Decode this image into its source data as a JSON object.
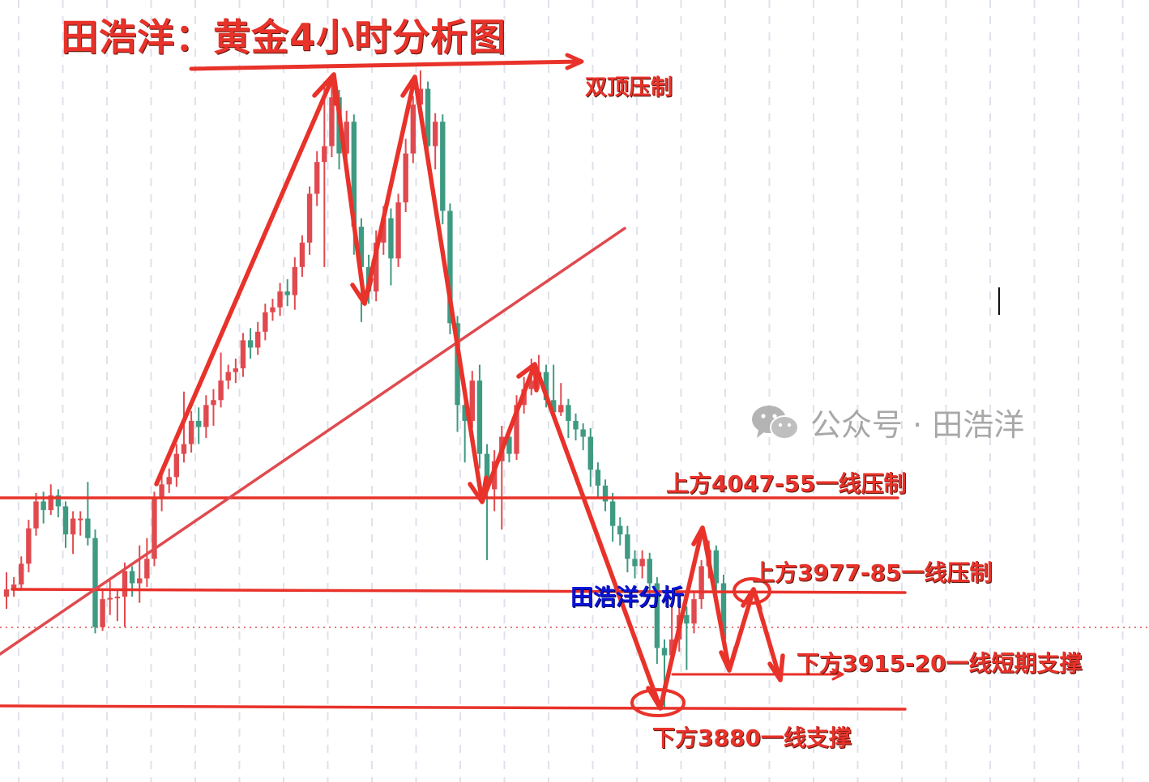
{
  "title": "田浩洋：黄金4小时分析图",
  "annotations": {
    "double_top": "双顶压制",
    "resistance_upper": "上方4047-55一线压制",
    "resistance_lower": "上方3977-85一线压制",
    "support_short": "下方3915-20一线短期支撑",
    "support_main": "下方3880一线支撑",
    "author_mark": "田浩洋分析"
  },
  "watermark": {
    "icon": "wechat-icon",
    "text": "公众号 · 田浩洋"
  },
  "colors": {
    "up": "#e04a4f",
    "down": "#3f9a82",
    "annotation": "#e8322a",
    "author": "#0a14d8",
    "grid": "#dfe2ea"
  },
  "chart_data": {
    "type": "candlestick",
    "timeframe": "4H",
    "levels": {
      "resistance_upper": [
        4047,
        4055
      ],
      "resistance_lower": [
        3977,
        3985
      ],
      "support_short": [
        3915,
        3920
      ],
      "support_main": 3880
    },
    "ohlc": [
      [
        3970,
        3990,
        3960,
        3976
      ],
      [
        3976,
        3986,
        3970,
        3980
      ],
      [
        3980,
        4003,
        3975,
        3997
      ],
      [
        3997,
        4033,
        3990,
        4026
      ],
      [
        4026,
        4055,
        4020,
        4048
      ],
      [
        4048,
        4056,
        4030,
        4041
      ],
      [
        4041,
        4062,
        4037,
        4053
      ],
      [
        4053,
        4058,
        4035,
        4044
      ],
      [
        4044,
        4048,
        4010,
        4021
      ],
      [
        4021,
        4040,
        4005,
        4034
      ],
      [
        4034,
        4040,
        4020,
        4034
      ],
      [
        4034,
        4064,
        4012,
        4018
      ],
      [
        4018,
        4025,
        3940,
        3945
      ],
      [
        3945,
        3975,
        3942,
        3968
      ],
      [
        3968,
        3983,
        3955,
        3969
      ],
      [
        3969,
        3975,
        3950,
        3970
      ],
      [
        3970,
        3998,
        3945,
        3991
      ],
      [
        3991,
        3995,
        3970,
        3981
      ],
      [
        3981,
        4012,
        3965,
        3985
      ],
      [
        3985,
        4018,
        3978,
        4001
      ],
      [
        4001,
        4056,
        3995,
        4051
      ],
      [
        4051,
        4070,
        4040,
        4062
      ],
      [
        4062,
        4075,
        4055,
        4068
      ],
      [
        4068,
        4095,
        4060,
        4087
      ],
      [
        4087,
        4138,
        4080,
        4095
      ],
      [
        4095,
        4122,
        4088,
        4114
      ],
      [
        4114,
        4125,
        4095,
        4109
      ],
      [
        4109,
        4135,
        4100,
        4127
      ],
      [
        4127,
        4140,
        4110,
        4131
      ],
      [
        4131,
        4170,
        4125,
        4147
      ],
      [
        4147,
        4160,
        4140,
        4154
      ],
      [
        4154,
        4165,
        4145,
        4157
      ],
      [
        4157,
        4186,
        4150,
        4180
      ],
      [
        4180,
        4190,
        4165,
        4174
      ],
      [
        4174,
        4195,
        4168,
        4187
      ],
      [
        4187,
        4210,
        4180,
        4203
      ],
      [
        4203,
        4214,
        4196,
        4207
      ],
      [
        4207,
        4227,
        4200,
        4220
      ],
      [
        4220,
        4230,
        4208,
        4217
      ],
      [
        4217,
        4248,
        4205,
        4240
      ],
      [
        4240,
        4266,
        4232,
        4260
      ],
      [
        4260,
        4306,
        4250,
        4300
      ],
      [
        4300,
        4335,
        4290,
        4326
      ],
      [
        4326,
        4392,
        4240,
        4339
      ],
      [
        4339,
        4398,
        4330,
        4379
      ],
      [
        4379,
        4385,
        4320,
        4333
      ],
      [
        4333,
        4368,
        4325,
        4359
      ],
      [
        4359,
        4365,
        4250,
        4273
      ],
      [
        4273,
        4280,
        4195,
        4240
      ],
      [
        4240,
        4250,
        4210,
        4220
      ],
      [
        4220,
        4270,
        4212,
        4260
      ],
      [
        4260,
        4290,
        4250,
        4280
      ],
      [
        4280,
        4288,
        4225,
        4247
      ],
      [
        4247,
        4300,
        4240,
        4293
      ],
      [
        4293,
        4345,
        4285,
        4333
      ],
      [
        4333,
        4380,
        4325,
        4373
      ],
      [
        4373,
        4401,
        4365,
        4386
      ],
      [
        4386,
        4392,
        4330,
        4339
      ],
      [
        4339,
        4366,
        4320,
        4359
      ],
      [
        4359,
        4365,
        4275,
        4286
      ],
      [
        4286,
        4292,
        4185,
        4194
      ],
      [
        4194,
        4200,
        4105,
        4127
      ],
      [
        4127,
        4135,
        4080,
        4114
      ],
      [
        4114,
        4155,
        4108,
        4147
      ],
      [
        4147,
        4160,
        4075,
        4087
      ],
      [
        4087,
        4095,
        4000,
        4058
      ],
      [
        4058,
        4090,
        4040,
        4081
      ],
      [
        4081,
        4110,
        4025,
        4101
      ],
      [
        4101,
        4108,
        4080,
        4087
      ],
      [
        4087,
        4135,
        4082,
        4127
      ],
      [
        4127,
        4150,
        4120,
        4140
      ],
      [
        4140,
        4165,
        4135,
        4147
      ],
      [
        4147,
        4168,
        4140,
        4154
      ],
      [
        4154,
        4160,
        4125,
        4131
      ],
      [
        4131,
        4160,
        4115,
        4121
      ],
      [
        4121,
        4145,
        4118,
        4127
      ],
      [
        4127,
        4132,
        4100,
        4114
      ],
      [
        4114,
        4120,
        4098,
        4107
      ],
      [
        4107,
        4112,
        4090,
        4101
      ],
      [
        4101,
        4108,
        4060,
        4074
      ],
      [
        4074,
        4080,
        4050,
        4061
      ],
      [
        4061,
        4066,
        4040,
        4048
      ],
      [
        4048,
        4055,
        4015,
        4028
      ],
      [
        4028,
        4035,
        4012,
        4021
      ],
      [
        4021,
        4028,
        3990,
        4001
      ],
      [
        4001,
        4008,
        3985,
        3995
      ],
      [
        3995,
        4008,
        3985,
        4001
      ],
      [
        4001,
        4006,
        3968,
        3981
      ],
      [
        3981,
        3986,
        3915,
        3928
      ],
      [
        3928,
        3935,
        3879,
        3922
      ],
      [
        3922,
        3965,
        3915,
        3935
      ],
      [
        3935,
        3962,
        3925,
        3955
      ],
      [
        3955,
        3962,
        3910,
        3948
      ],
      [
        3948,
        3975,
        3940,
        3968
      ],
      [
        3968,
        4000,
        3960,
        3995
      ],
      [
        3995,
        4016,
        3985,
        4008
      ],
      [
        4008,
        4012,
        3975,
        3981
      ],
      [
        3981,
        3988,
        3930,
        3935
      ]
    ]
  }
}
